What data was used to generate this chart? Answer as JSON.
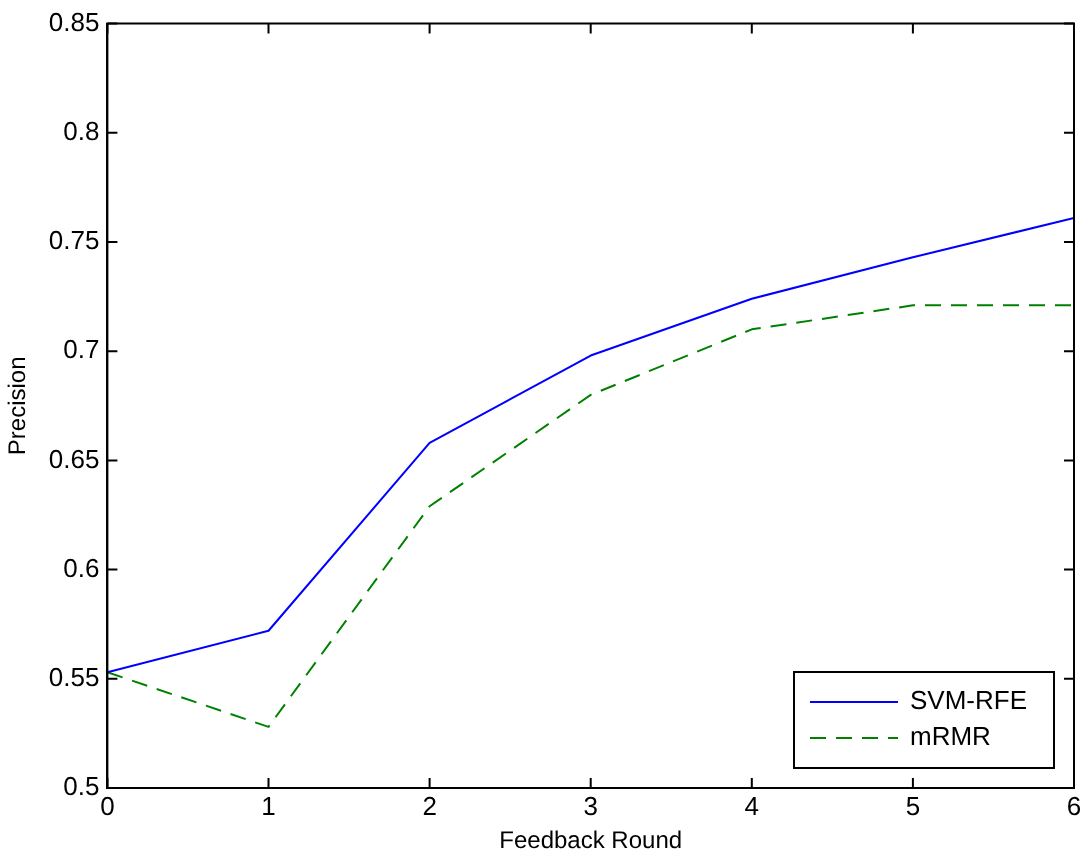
{
  "chart_data": {
    "type": "line",
    "xlabel": "Feedback Round",
    "ylabel": "Precision",
    "x": [
      0,
      1,
      2,
      3,
      4,
      5,
      6
    ],
    "series": [
      {
        "name": "SVM-RFE",
        "color": "#0000ff",
        "line_style": "solid",
        "values": [
          0.553,
          0.572,
          0.658,
          0.698,
          0.724,
          0.743,
          0.761
        ]
      },
      {
        "name": "mRMR",
        "color": "#008000",
        "line_style": "dashed",
        "values": [
          0.553,
          0.528,
          0.629,
          0.68,
          0.71,
          0.721,
          0.721
        ]
      }
    ],
    "xlim": [
      0,
      6
    ],
    "xticks": [
      0,
      1,
      2,
      3,
      4,
      5,
      6
    ],
    "ylim": [
      0.5,
      0.85
    ],
    "yticks": [
      0.5,
      0.55,
      0.6,
      0.65,
      0.7,
      0.75,
      0.8,
      0.85
    ],
    "grid": false,
    "legend": "bottom right",
    "marker": "none"
  }
}
